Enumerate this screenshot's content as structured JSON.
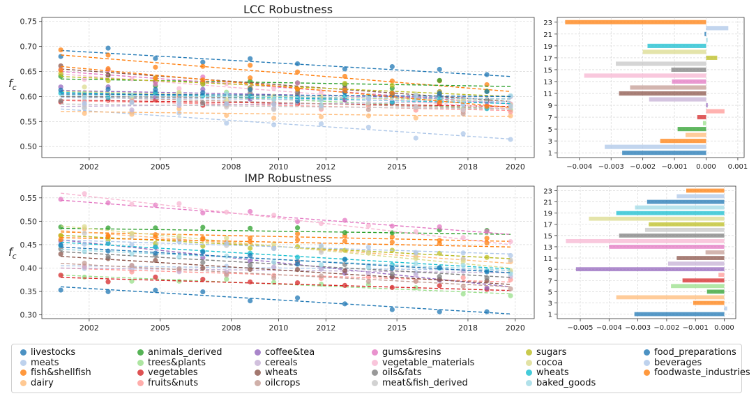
{
  "colors": [
    "#1f77b4",
    "#aec7e8",
    "#ff7f0e",
    "#ffbb78",
    "#2ca02c",
    "#98df8a",
    "#d62728",
    "#ff9896",
    "#9467bd",
    "#c5b0d5",
    "#8c564b",
    "#c49c94",
    "#e377c2",
    "#f7b6d2",
    "#7f7f7f",
    "#c7c7c7",
    "#bcbd22",
    "#dbdb8d",
    "#17becf",
    "#9edae5",
    "#1f77b4",
    "#aec7e8",
    "#ff7f0e"
  ],
  "chart_data": [
    {
      "type": "scatter",
      "title": "LCC Robustness",
      "ylabel": "f_c",
      "xlim": [
        2000.0,
        2020.8
      ],
      "ylim": [
        0.478,
        0.758
      ],
      "xticks": [
        2002,
        2005,
        2008,
        2010,
        2012,
        2015,
        2018,
        2020
      ],
      "xtick_labels": [
        "2002",
        "2005",
        "2008",
        "2010",
        "2012",
        "2015",
        "2018",
        "2020"
      ],
      "yticks": [
        0.5,
        0.55,
        0.6,
        0.65,
        0.7,
        0.75
      ],
      "ytick_labels": [
        "0.50",
        "0.55",
        "0.60",
        "0.65",
        "0.70",
        "0.75"
      ],
      "x": [
        2000.8,
        2001.8,
        2002.8,
        2003.8,
        2004.8,
        2005.8,
        2006.8,
        2007.8,
        2008.8,
        2009.8,
        2010.8,
        2011.8,
        2012.8,
        2013.8,
        2014.8,
        2015.8,
        2016.8,
        2017.8,
        2018.8,
        2019.8
      ],
      "series_trend": [
        {
          "y0": 0.692,
          "y1": 0.64
        },
        {
          "y0": 0.575,
          "y1": 0.515
        },
        {
          "y0": 0.683,
          "y1": 0.61
        },
        {
          "y0": 0.57,
          "y1": 0.56
        },
        {
          "y0": 0.635,
          "y1": 0.62
        },
        {
          "y0": 0.612,
          "y1": 0.575
        },
        {
          "y0": 0.593,
          "y1": 0.58
        },
        {
          "y0": 0.592,
          "y1": 0.572
        },
        {
          "y0": 0.612,
          "y1": 0.595
        },
        {
          "y0": 0.58,
          "y1": 0.59
        },
        {
          "y0": 0.655,
          "y1": 0.59
        },
        {
          "y0": 0.6,
          "y1": 0.575
        },
        {
          "y0": 0.65,
          "y1": 0.585
        },
        {
          "y0": 0.645,
          "y1": 0.575
        },
        {
          "y0": 0.6,
          "y1": 0.595
        },
        {
          "y0": 0.585,
          "y1": 0.575
        },
        {
          "y0": 0.64,
          "y1": 0.6
        },
        {
          "y0": 0.61,
          "y1": 0.59
        },
        {
          "y0": 0.608,
          "y1": 0.586
        },
        {
          "y0": 0.603,
          "y1": 0.595
        },
        {
          "y0": 0.605,
          "y1": 0.6
        },
        {
          "y0": 0.598,
          "y1": 0.59
        },
        {
          "y0": 0.66,
          "y1": 0.578
        }
      ],
      "noise_amplitude": 0.012
    },
    {
      "type": "bar",
      "orientation": "horizontal",
      "categories": [
        "1",
        "2",
        "3",
        "4",
        "5",
        "6",
        "7",
        "8",
        "9",
        "10",
        "11",
        "12",
        "13",
        "14",
        "15",
        "16",
        "17",
        "18",
        "19",
        "20",
        "21",
        "22",
        "23"
      ],
      "ytick_labels": [
        "1",
        "3",
        "5",
        "7",
        "9",
        "11",
        "13",
        "15",
        "17",
        "19",
        "21",
        "23"
      ],
      "values": [
        -0.00265,
        -0.0032,
        -0.00145,
        -0.00065,
        -0.0009,
        -0.0001,
        -0.00028,
        0.00058,
        5e-05,
        -0.0018,
        -0.00275,
        -0.0024,
        -0.00108,
        -0.00385,
        -0.0011,
        -0.00285,
        0.00035,
        -0.002,
        -0.00185,
        5e-05,
        -5e-05,
        0.0007,
        -0.00445
      ],
      "xlim": [
        -0.0047,
        0.0012
      ],
      "xticks": [
        -0.004,
        -0.003,
        -0.002,
        -0.001,
        0.0,
        0.001
      ],
      "xtick_labels": [
        "−0.004",
        "−0.003",
        "−0.002",
        "−0.001",
        "0.000",
        "0.001"
      ]
    },
    {
      "type": "scatter",
      "title": "IMP Robustness",
      "ylabel": "f_c",
      "xlim": [
        2000.0,
        2020.8
      ],
      "ylim": [
        0.292,
        0.575
      ],
      "xticks": [
        2002,
        2005,
        2008,
        2010,
        2012,
        2015,
        2018,
        2020
      ],
      "xtick_labels": [
        "2002",
        "2005",
        "2008",
        "2010",
        "2012",
        "2015",
        "2018",
        "2020"
      ],
      "yticks": [
        0.3,
        0.35,
        0.4,
        0.45,
        0.5,
        0.55
      ],
      "ytick_labels": [
        "0.30",
        "0.35",
        "0.40",
        "0.45",
        "0.50",
        "0.55"
      ],
      "x": [
        2000.8,
        2001.8,
        2002.8,
        2003.8,
        2004.8,
        2005.8,
        2006.8,
        2007.8,
        2008.8,
        2009.8,
        2010.8,
        2011.8,
        2012.8,
        2013.8,
        2014.8,
        2015.8,
        2016.8,
        2017.8,
        2018.8,
        2019.8
      ],
      "series_trend": [
        {
          "y0": 0.36,
          "y1": 0.302
        },
        {
          "y0": 0.405,
          "y1": 0.395
        },
        {
          "y0": 0.477,
          "y1": 0.457
        },
        {
          "y0": 0.48,
          "y1": 0.41
        },
        {
          "y0": 0.485,
          "y1": 0.472
        },
        {
          "y0": 0.385,
          "y1": 0.345
        },
        {
          "y0": 0.38,
          "y1": 0.352
        },
        {
          "y0": 0.4,
          "y1": 0.37
        },
        {
          "y0": 0.46,
          "y1": 0.36
        },
        {
          "y0": 0.4,
          "y1": 0.39
        },
        {
          "y0": 0.425,
          "y1": 0.365
        },
        {
          "y0": 0.41,
          "y1": 0.36
        },
        {
          "y0": 0.545,
          "y1": 0.472
        },
        {
          "y0": 0.56,
          "y1": 0.45
        },
        {
          "y0": 0.435,
          "y1": 0.38
        },
        {
          "y0": 0.47,
          "y1": 0.42
        },
        {
          "y0": 0.47,
          "y1": 0.42
        },
        {
          "y0": 0.49,
          "y1": 0.4
        },
        {
          "y0": 0.455,
          "y1": 0.398
        },
        {
          "y0": 0.44,
          "y1": 0.395
        },
        {
          "y0": 0.445,
          "y1": 0.39
        },
        {
          "y0": 0.46,
          "y1": 0.43
        },
        {
          "y0": 0.465,
          "y1": 0.445
        }
      ],
      "noise_amplitude": 0.008
    },
    {
      "type": "bar",
      "orientation": "horizontal",
      "categories": [
        "1",
        "2",
        "3",
        "4",
        "5",
        "6",
        "7",
        "8",
        "9",
        "10",
        "11",
        "12",
        "13",
        "14",
        "15",
        "16",
        "17",
        "18",
        "19",
        "20",
        "21",
        "22",
        "23"
      ],
      "ytick_labels": [
        "1",
        "3",
        "5",
        "7",
        "9",
        "11",
        "13",
        "15",
        "17",
        "19",
        "21",
        "23"
      ],
      "values": [
        -0.00312,
        0.0001,
        -0.00108,
        -0.00375,
        -0.0006,
        -0.00185,
        -0.00145,
        -0.0002,
        -0.00515,
        -0.00195,
        -0.00165,
        -0.00065,
        -0.004,
        -0.0055,
        -0.00365,
        -0.00275,
        -0.00262,
        -0.0047,
        -0.00375,
        -0.0031,
        -0.00268,
        -0.00165,
        -0.00132
      ],
      "xlim": [
        -0.0058,
        0.0004
      ],
      "xticks": [
        -0.005,
        -0.004,
        -0.003,
        -0.002,
        -0.001,
        0.0
      ],
      "xtick_labels": [
        "−0.005",
        "−0.004",
        "−0.003",
        "−0.002",
        "−0.001",
        "0.000"
      ]
    }
  ],
  "legend": [
    "livestocks",
    "meats",
    "fish&shellfish",
    "dairy",
    "animals_derived",
    "trees&plants",
    "vegetables",
    "fruits&nuts",
    "coffee&tea",
    "cereals",
    "wheats",
    "oilcrops",
    "gums&resins",
    "vegetable_materials",
    "oils&fats",
    "meat&fish_derived",
    "sugars",
    "cocoa",
    "wheats",
    "baked_goods",
    "food_preparations",
    "beverages",
    "foodwaste_industries"
  ]
}
